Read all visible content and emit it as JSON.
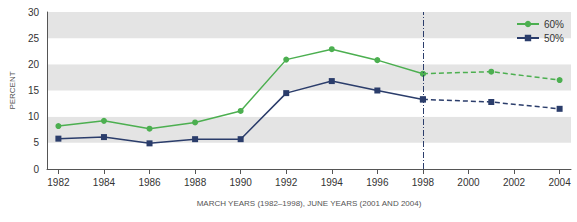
{
  "chart_data": {
    "type": "line",
    "x_label": "MARCH YEARS (1982–1998), JUNE YEARS (2001 AND 2004)",
    "y_label": "PERCENT",
    "x": [
      1982,
      1984,
      1986,
      1988,
      1990,
      1992,
      1994,
      1996,
      1998,
      2001,
      2004
    ],
    "series": [
      {
        "name": "60%",
        "color": "#4caf50",
        "marker": "circle",
        "line_style": "solid",
        "values": [
          8.2,
          9.2,
          7.7,
          8.9,
          11.1,
          20.9,
          22.9,
          20.8,
          18.2,
          18.6,
          17.0
        ]
      },
      {
        "name": "50%",
        "color": "#2b3d6b",
        "marker": "square",
        "line_style": "solid",
        "values": [
          5.8,
          6.1,
          4.9,
          5.7,
          5.7,
          14.5,
          16.8,
          15.0,
          13.3,
          12.8,
          11.5
        ]
      }
    ],
    "xlim": [
      1981.5,
      2004.5
    ],
    "xticks": [
      1982,
      1984,
      1986,
      1988,
      1990,
      1992,
      1994,
      1996,
      1998,
      2000,
      2002,
      2004
    ],
    "ylim": [
      0,
      30
    ],
    "yticks": [
      0,
      5,
      10,
      15,
      20,
      25,
      30
    ],
    "grid": true,
    "legend": "upper right",
    "annotations": [
      {
        "type": "vline",
        "x": 1998,
        "line_style": "dashdot"
      }
    ]
  }
}
